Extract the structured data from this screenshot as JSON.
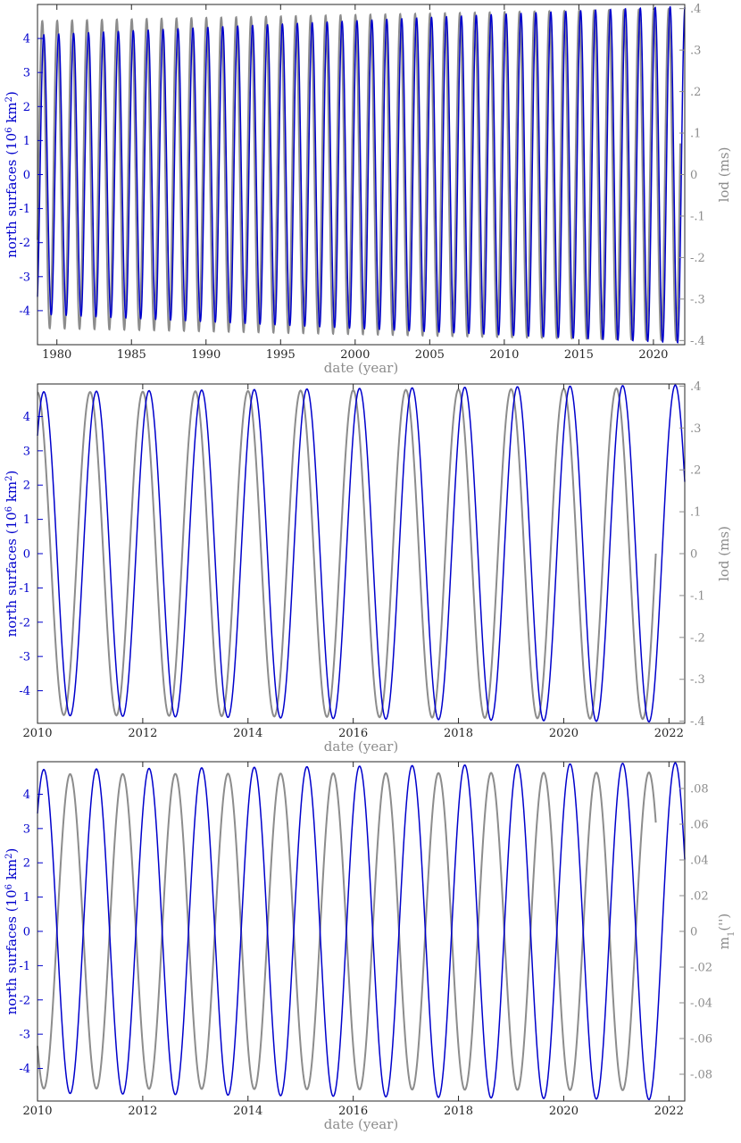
{
  "colors": {
    "left": "#0000cc",
    "right": "#8c8c8c",
    "axis": "#262626"
  },
  "chart_data": [
    {
      "type": "line",
      "xlabel": "date (year)",
      "ylabel_left": [
        "north surfaces (10",
        "6",
        " km",
        "2",
        ")"
      ],
      "ylabel_right": [
        "lod (ms)"
      ],
      "xlim": [
        1978.7,
        2022.1
      ],
      "ylim_left": [
        -5.0,
        5.0
      ],
      "ylim_right": [
        -0.41,
        0.41
      ],
      "xticks": [
        1980,
        1985,
        1990,
        1995,
        2000,
        2005,
        2010,
        2015,
        2020
      ],
      "yticks_left": [
        -4,
        -3,
        -2,
        -1,
        0,
        1,
        2,
        3,
        4
      ],
      "yticks_right": [
        -0.4,
        -0.3,
        -0.2,
        -0.1,
        0,
        0.1,
        0.2,
        0.3,
        0.4
      ],
      "grid": false,
      "series": [
        {
          "axis": "right",
          "x_range": [
            1978.7,
            2021.8
          ],
          "amp_start": 0.37,
          "amp_end": 0.4,
          "period": 1.0,
          "peak_phase": 0.02
        },
        {
          "axis": "left",
          "x_range": [
            1978.7,
            2022.1
          ],
          "amp_start": 4.1,
          "amp_end": 4.95,
          "period": 1.0,
          "peak_phase": 0.12
        }
      ]
    },
    {
      "type": "line",
      "xlabel": "date (year)",
      "ylabel_left": [
        "north surfaces (10",
        "6",
        " km",
        "2",
        ")"
      ],
      "ylabel_right": [
        "lod (ms)"
      ],
      "xlim": [
        2010.0,
        2022.3
      ],
      "ylim_left": [
        -4.95,
        4.95
      ],
      "ylim_right": [
        -0.405,
        0.405
      ],
      "xticks": [
        2010,
        2012,
        2014,
        2016,
        2018,
        2020,
        2022
      ],
      "yticks_left": [
        -4,
        -3,
        -2,
        -1,
        0,
        1,
        2,
        3,
        4
      ],
      "yticks_right": [
        -0.4,
        -0.3,
        -0.2,
        -0.1,
        0,
        0.1,
        0.2,
        0.3,
        0.4
      ],
      "grid": false,
      "series": [
        {
          "axis": "right",
          "x_range": [
            2010.0,
            2021.75
          ],
          "amp_start": 0.385,
          "amp_end": 0.395,
          "period": 1.0,
          "peak_phase": 0.0
        },
        {
          "axis": "left",
          "x_range": [
            2010.0,
            2022.3
          ],
          "amp_start": 4.72,
          "amp_end": 4.92,
          "period": 1.0,
          "peak_phase": 0.12
        }
      ]
    },
    {
      "type": "line",
      "xlabel": "date (year)",
      "ylabel_left": [
        "north surfaces (10",
        "6",
        " km",
        "2",
        ")"
      ],
      "ylabel_right": [
        "m",
        "1",
        "('')"
      ],
      "xlim": [
        2010.0,
        2022.3
      ],
      "ylim_left": [
        -4.95,
        4.95
      ],
      "ylim_right": [
        -0.095,
        0.095
      ],
      "xticks": [
        2010,
        2012,
        2014,
        2016,
        2018,
        2020,
        2022
      ],
      "yticks_left": [
        -4,
        -3,
        -2,
        -1,
        0,
        1,
        2,
        3,
        4
      ],
      "yticks_right": [
        -0.08,
        -0.06,
        -0.04,
        -0.02,
        0,
        0.02,
        0.04,
        0.06,
        0.08
      ],
      "grid": false,
      "series": [
        {
          "axis": "right",
          "x_range": [
            2010.0,
            2021.75
          ],
          "amp_start": 0.088,
          "amp_end": 0.089,
          "period": 1.0,
          "peak_phase": 0.62
        },
        {
          "axis": "left",
          "x_range": [
            2010.0,
            2022.3
          ],
          "amp_start": 4.72,
          "amp_end": 4.92,
          "period": 1.0,
          "peak_phase": 0.12
        }
      ]
    }
  ]
}
